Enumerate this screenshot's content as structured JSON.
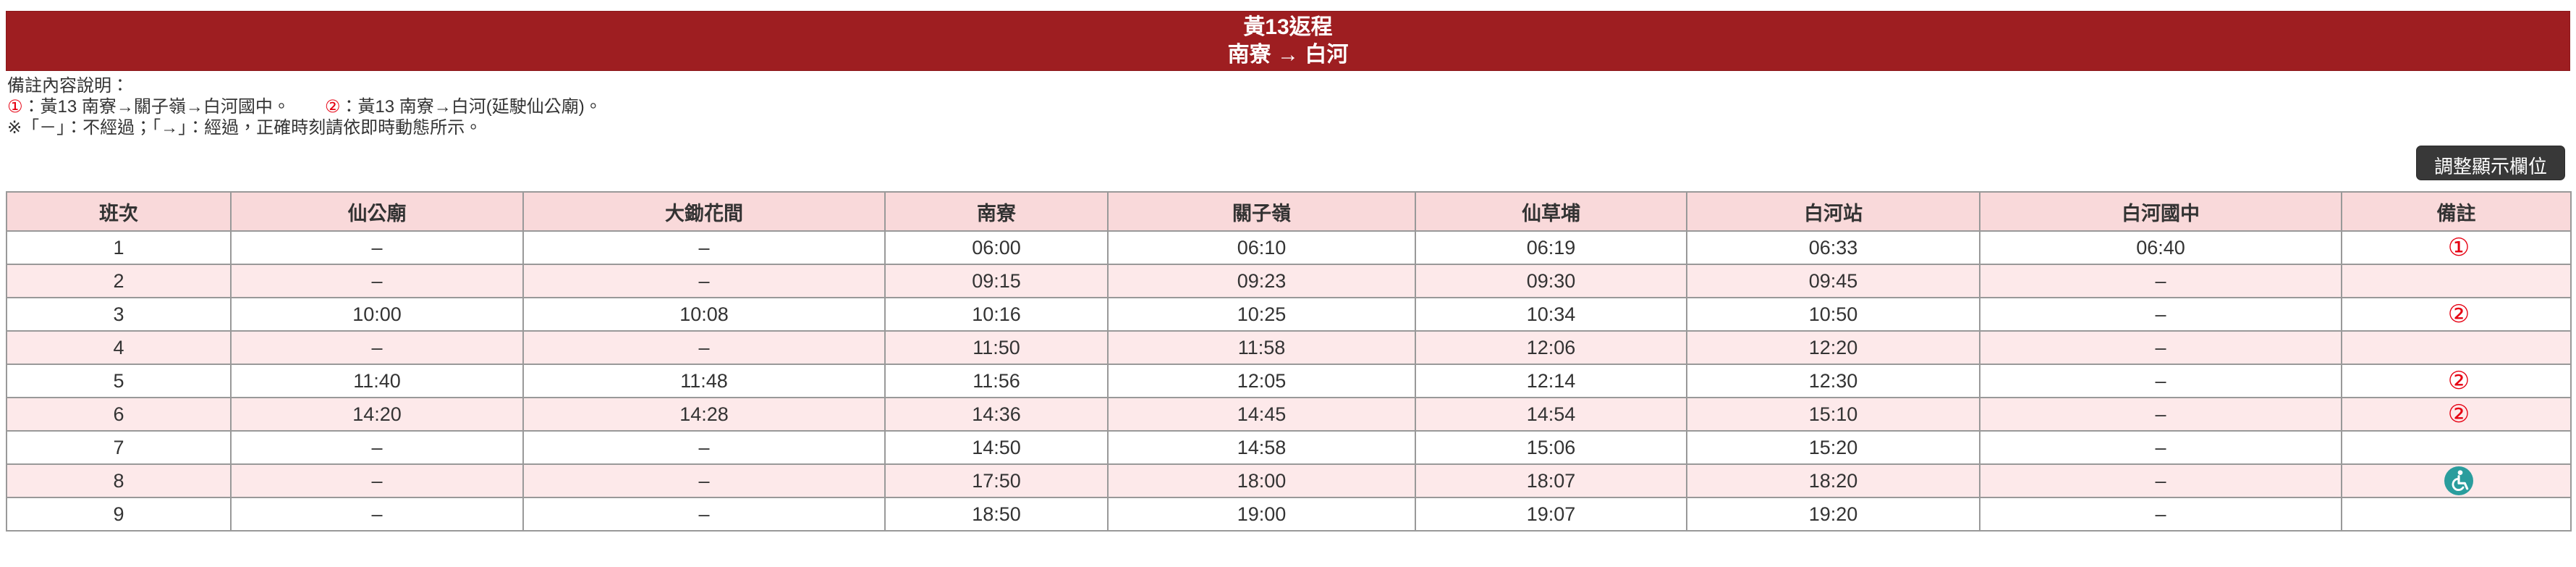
{
  "banner": {
    "title": "黃13返程",
    "subtitle": "南寮 → 白河",
    "bg_color": "#9e1e21"
  },
  "notes": {
    "heading": "備註內容說明：",
    "legend_segments": [
      {
        "text": "①",
        "red": true
      },
      {
        "text": "：黃13 南寮→關子嶺→白河國中。　　",
        "red": false
      },
      {
        "text": "②",
        "red": true
      },
      {
        "text": "：黃13 南寮→白河(延駛仙公廟)。",
        "red": false
      }
    ],
    "footnote": "※「－」：不經過；「→」：經過，正確時刻請依即時動態所示。"
  },
  "toolbar": {
    "adjust_columns_label": "調整顯示欄位"
  },
  "timetable": {
    "columns": [
      "班次",
      "仙公廟",
      "大鋤花間",
      "南寮",
      "關子嶺",
      "仙草埔",
      "白河站",
      "白河國中",
      "備註"
    ],
    "rows": [
      {
        "cells": [
          "1",
          "–",
          "–",
          "06:00",
          "06:10",
          "06:19",
          "06:33",
          "06:40"
        ],
        "remark": "①"
      },
      {
        "cells": [
          "2",
          "–",
          "–",
          "09:15",
          "09:23",
          "09:30",
          "09:45",
          "–"
        ],
        "remark": ""
      },
      {
        "cells": [
          "3",
          "10:00",
          "10:08",
          "10:16",
          "10:25",
          "10:34",
          "10:50",
          "–"
        ],
        "remark": "②"
      },
      {
        "cells": [
          "4",
          "–",
          "–",
          "11:50",
          "11:58",
          "12:06",
          "12:20",
          "–"
        ],
        "remark": ""
      },
      {
        "cells": [
          "5",
          "11:40",
          "11:48",
          "11:56",
          "12:05",
          "12:14",
          "12:30",
          "–"
        ],
        "remark": "②"
      },
      {
        "cells": [
          "6",
          "14:20",
          "14:28",
          "14:36",
          "14:45",
          "14:54",
          "15:10",
          "–"
        ],
        "remark": "②"
      },
      {
        "cells": [
          "7",
          "–",
          "–",
          "14:50",
          "14:58",
          "15:06",
          "15:20",
          "–"
        ],
        "remark": ""
      },
      {
        "cells": [
          "8",
          "–",
          "–",
          "17:50",
          "18:00",
          "18:07",
          "18:20",
          "–"
        ],
        "remark": "wheelchair"
      },
      {
        "cells": [
          "9",
          "–",
          "–",
          "18:50",
          "19:00",
          "19:07",
          "19:20",
          "–"
        ],
        "remark": ""
      }
    ],
    "colors": {
      "header_bg": "#f9d9da",
      "row_alt_bg": "#fde9ea",
      "border": "#999999",
      "remark_red": "#e60012",
      "wheelchair_teal": "#2a9d9d"
    }
  }
}
